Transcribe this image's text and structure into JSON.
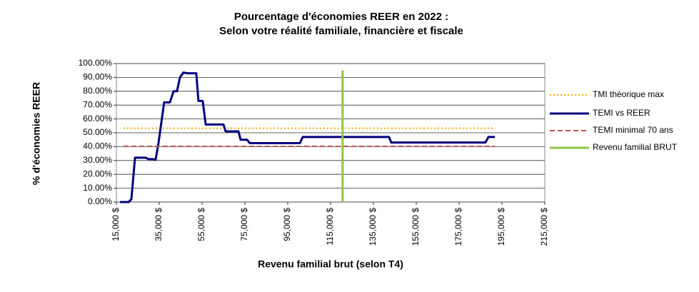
{
  "chart_data": {
    "type": "line",
    "title": [
      "Pourcentage d'économies REER en 2022 :",
      "Selon votre réalité familiale, financière et fiscale"
    ],
    "x_label": "Revenu familial brut (selon T4)",
    "y_label": "% d'économies REER",
    "xlim": [
      15000,
      215000
    ],
    "xticks": [
      {
        "value": 15000,
        "label": "15,000 $"
      },
      {
        "value": 35000,
        "label": "35,000 $"
      },
      {
        "value": 55000,
        "label": "55,000 $"
      },
      {
        "value": 75000,
        "label": "75,000 $"
      },
      {
        "value": 95000,
        "label": "95,000 $"
      },
      {
        "value": 115000,
        "label": "115,000 $"
      },
      {
        "value": 135000,
        "label": "135,000 $"
      },
      {
        "value": 155000,
        "label": "155,000 $"
      },
      {
        "value": 175000,
        "label": "175,000 $"
      },
      {
        "value": 195000,
        "label": "195,000 $"
      },
      {
        "value": 215000,
        "label": "215,000 $"
      }
    ],
    "ylim": [
      0,
      100
    ],
    "yticks": [
      {
        "value": 0,
        "label": "0.00%"
      },
      {
        "value": 10,
        "label": "10.00%"
      },
      {
        "value": 20,
        "label": "20.00%"
      },
      {
        "value": 30,
        "label": "30.00%"
      },
      {
        "value": 40,
        "label": "40.00%"
      },
      {
        "value": 50,
        "label": "50.00%"
      },
      {
        "value": 60,
        "label": "60.00%"
      },
      {
        "value": 70,
        "label": "70.00%"
      },
      {
        "value": 80,
        "label": "80.00%"
      },
      {
        "value": 90,
        "label": "90.00%"
      },
      {
        "value": 100,
        "label": "100.00%"
      }
    ],
    "grid": true,
    "legend": "right",
    "series": [
      {
        "name": "TMI théorique max",
        "color": "#ffa500",
        "style": "dotted",
        "x": [
          18300,
          191700
        ],
        "values": [
          53.31,
          53.31
        ]
      },
      {
        "name": "TEMI vs REER",
        "color": "#000080",
        "style": "solid",
        "x": [
          16700,
          20700,
          22000,
          23700,
          28700,
          30000,
          32000,
          33300,
          34700,
          37300,
          40000,
          41700,
          43300,
          44700,
          46300,
          48000,
          52300,
          53300,
          55300,
          56700,
          65000,
          66000,
          72000,
          73000,
          76000,
          77300,
          100700,
          102000,
          142300,
          143300,
          187300,
          188700,
          191700
        ],
        "values": [
          0,
          0,
          2,
          32,
          32,
          31,
          31,
          30.5,
          43,
          72,
          72,
          80,
          80,
          90,
          93.5,
          93,
          93,
          73,
          73,
          56,
          56,
          51,
          51,
          45,
          45,
          42.5,
          42.5,
          47,
          47,
          43,
          43,
          47,
          47
        ]
      },
      {
        "name": "TEMI minimal 70 ans",
        "color": "#c0504d",
        "style": "dashed",
        "x": [
          18300,
          191700
        ],
        "values": [
          40.2,
          40.2
        ]
      },
      {
        "name": "Revenu familial BRUT",
        "color": "#8cc63f",
        "style": "solid",
        "x": [
          120600,
          120600
        ],
        "values": [
          0,
          95
        ]
      }
    ]
  }
}
